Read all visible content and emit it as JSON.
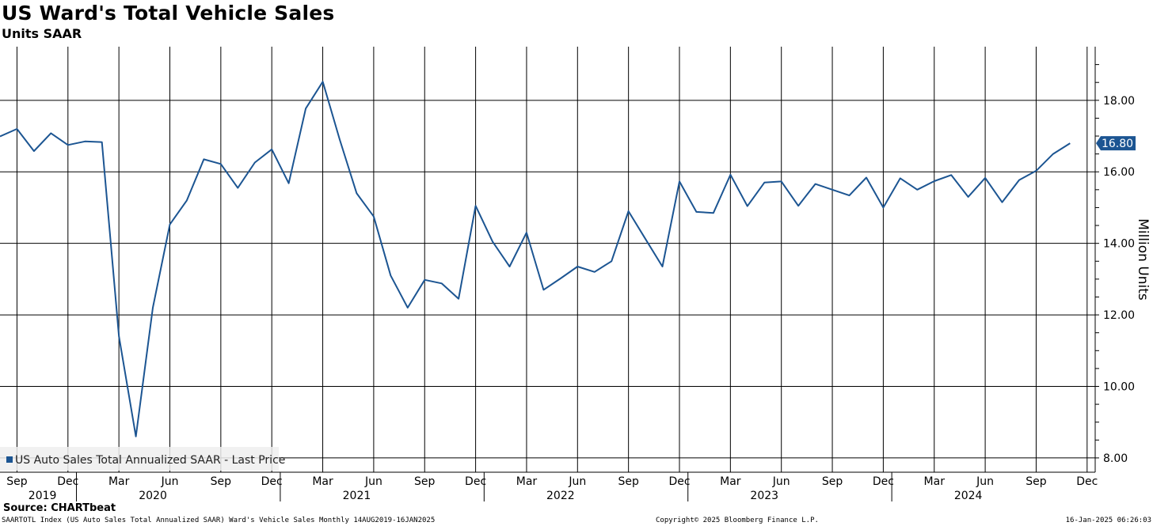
{
  "header": {
    "title": "US Ward's Total Vehicle Sales",
    "subtitle": "Units SAAR"
  },
  "footer": {
    "source": "Source: CHARTbeat",
    "description": "SAARTOTL Index (US Auto Sales Total Annualized SAAR) Ward's Vehicle Sales  Monthly 14AUG2019-16JAN2025",
    "copyright": "Copyright© 2025 Bloomberg Finance L.P.",
    "timestamp": "16-Jan-2025 06:26:03"
  },
  "colors": {
    "series": "#1c5592",
    "grid": "#000000",
    "last_price_label_bg": "#1c5592",
    "last_price_label_text": "#ffffff",
    "legend_bg": "#eeeeee"
  },
  "chart_data": {
    "type": "line",
    "ylabel": "Million Units",
    "ylim": [
      7.6,
      19.5
    ],
    "yticks": [
      8.0,
      10.0,
      12.0,
      14.0,
      16.0,
      18.0
    ],
    "ytick_labels": [
      "8.00",
      "10.00",
      "12.00",
      "14.00",
      "16.00",
      "18.00"
    ],
    "legend": "US Auto Sales Total Annualized SAAR - Last Price",
    "last_value_label": "16.80",
    "x_start": "2019-08",
    "month_ticks": [
      "Sep",
      "Dec",
      "Mar",
      "Jun",
      "Sep",
      "Dec",
      "Mar",
      "Jun",
      "Sep",
      "Dec",
      "Mar",
      "Jun",
      "Sep",
      "Dec",
      "Mar",
      "Jun",
      "Sep",
      "Dec",
      "Mar",
      "Jun",
      "Sep",
      "Dec"
    ],
    "month_tick_index": [
      1,
      4,
      7,
      10,
      13,
      16,
      19,
      22,
      25,
      28,
      31,
      34,
      37,
      40,
      43,
      46,
      49,
      52,
      55,
      58,
      61,
      64
    ],
    "year_labels": [
      "2019",
      "2020",
      "2021",
      "2022",
      "2023",
      "2024"
    ],
    "year_center_index": [
      2.5,
      9,
      21,
      33,
      45,
      57
    ],
    "year_sep_index": [
      4.5,
      16.5,
      28.5,
      40.5,
      52.5
    ],
    "series": [
      {
        "name": "US Auto Sales Total Annualized SAAR",
        "values": [
          16.99,
          17.2,
          16.58,
          17.08,
          16.75,
          16.85,
          16.83,
          11.4,
          8.6,
          12.2,
          14.53,
          15.2,
          16.35,
          16.22,
          15.55,
          16.26,
          16.63,
          15.68,
          17.77,
          18.52,
          16.9,
          15.4,
          14.75,
          13.1,
          12.2,
          12.98,
          12.88,
          12.45,
          15.05,
          14.05,
          13.35,
          14.3,
          12.7,
          13.02,
          13.35,
          13.2,
          13.5,
          14.9,
          14.12,
          13.35,
          15.73,
          14.88,
          14.85,
          15.92,
          15.04,
          15.7,
          15.73,
          15.05,
          15.66,
          15.5,
          15.34,
          15.84,
          15.0,
          15.82,
          15.5,
          15.74,
          15.91,
          15.3,
          15.83,
          15.15,
          15.77,
          16.03,
          16.5,
          16.8
        ]
      }
    ]
  }
}
